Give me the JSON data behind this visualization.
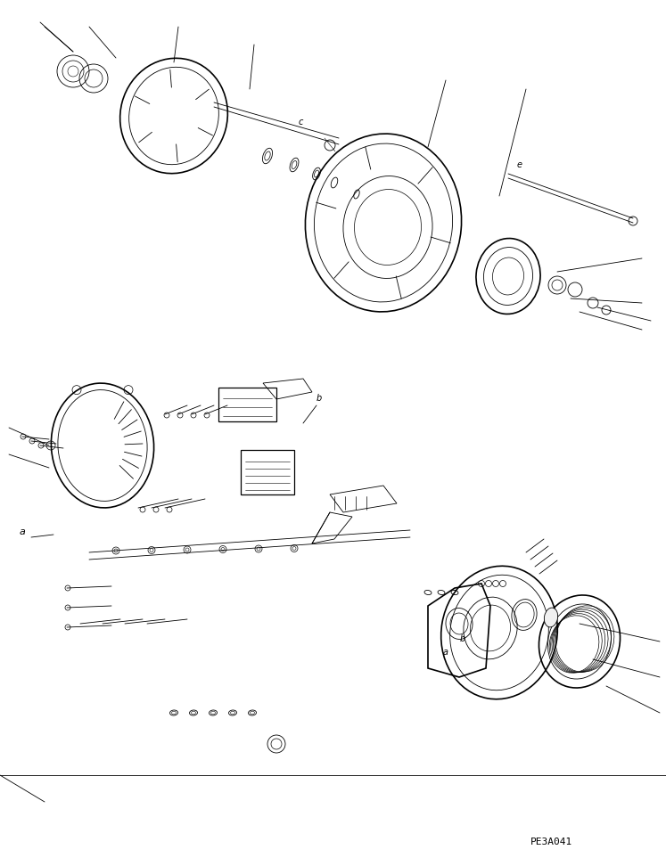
{
  "background_color": "#ffffff",
  "line_color": "#000000",
  "page_id": "PE3A041",
  "label_a": "a",
  "label_b": "b",
  "label_c": "c",
  "label_e": "e",
  "figsize": [
    7.47,
    9.63
  ],
  "dpi": 100
}
